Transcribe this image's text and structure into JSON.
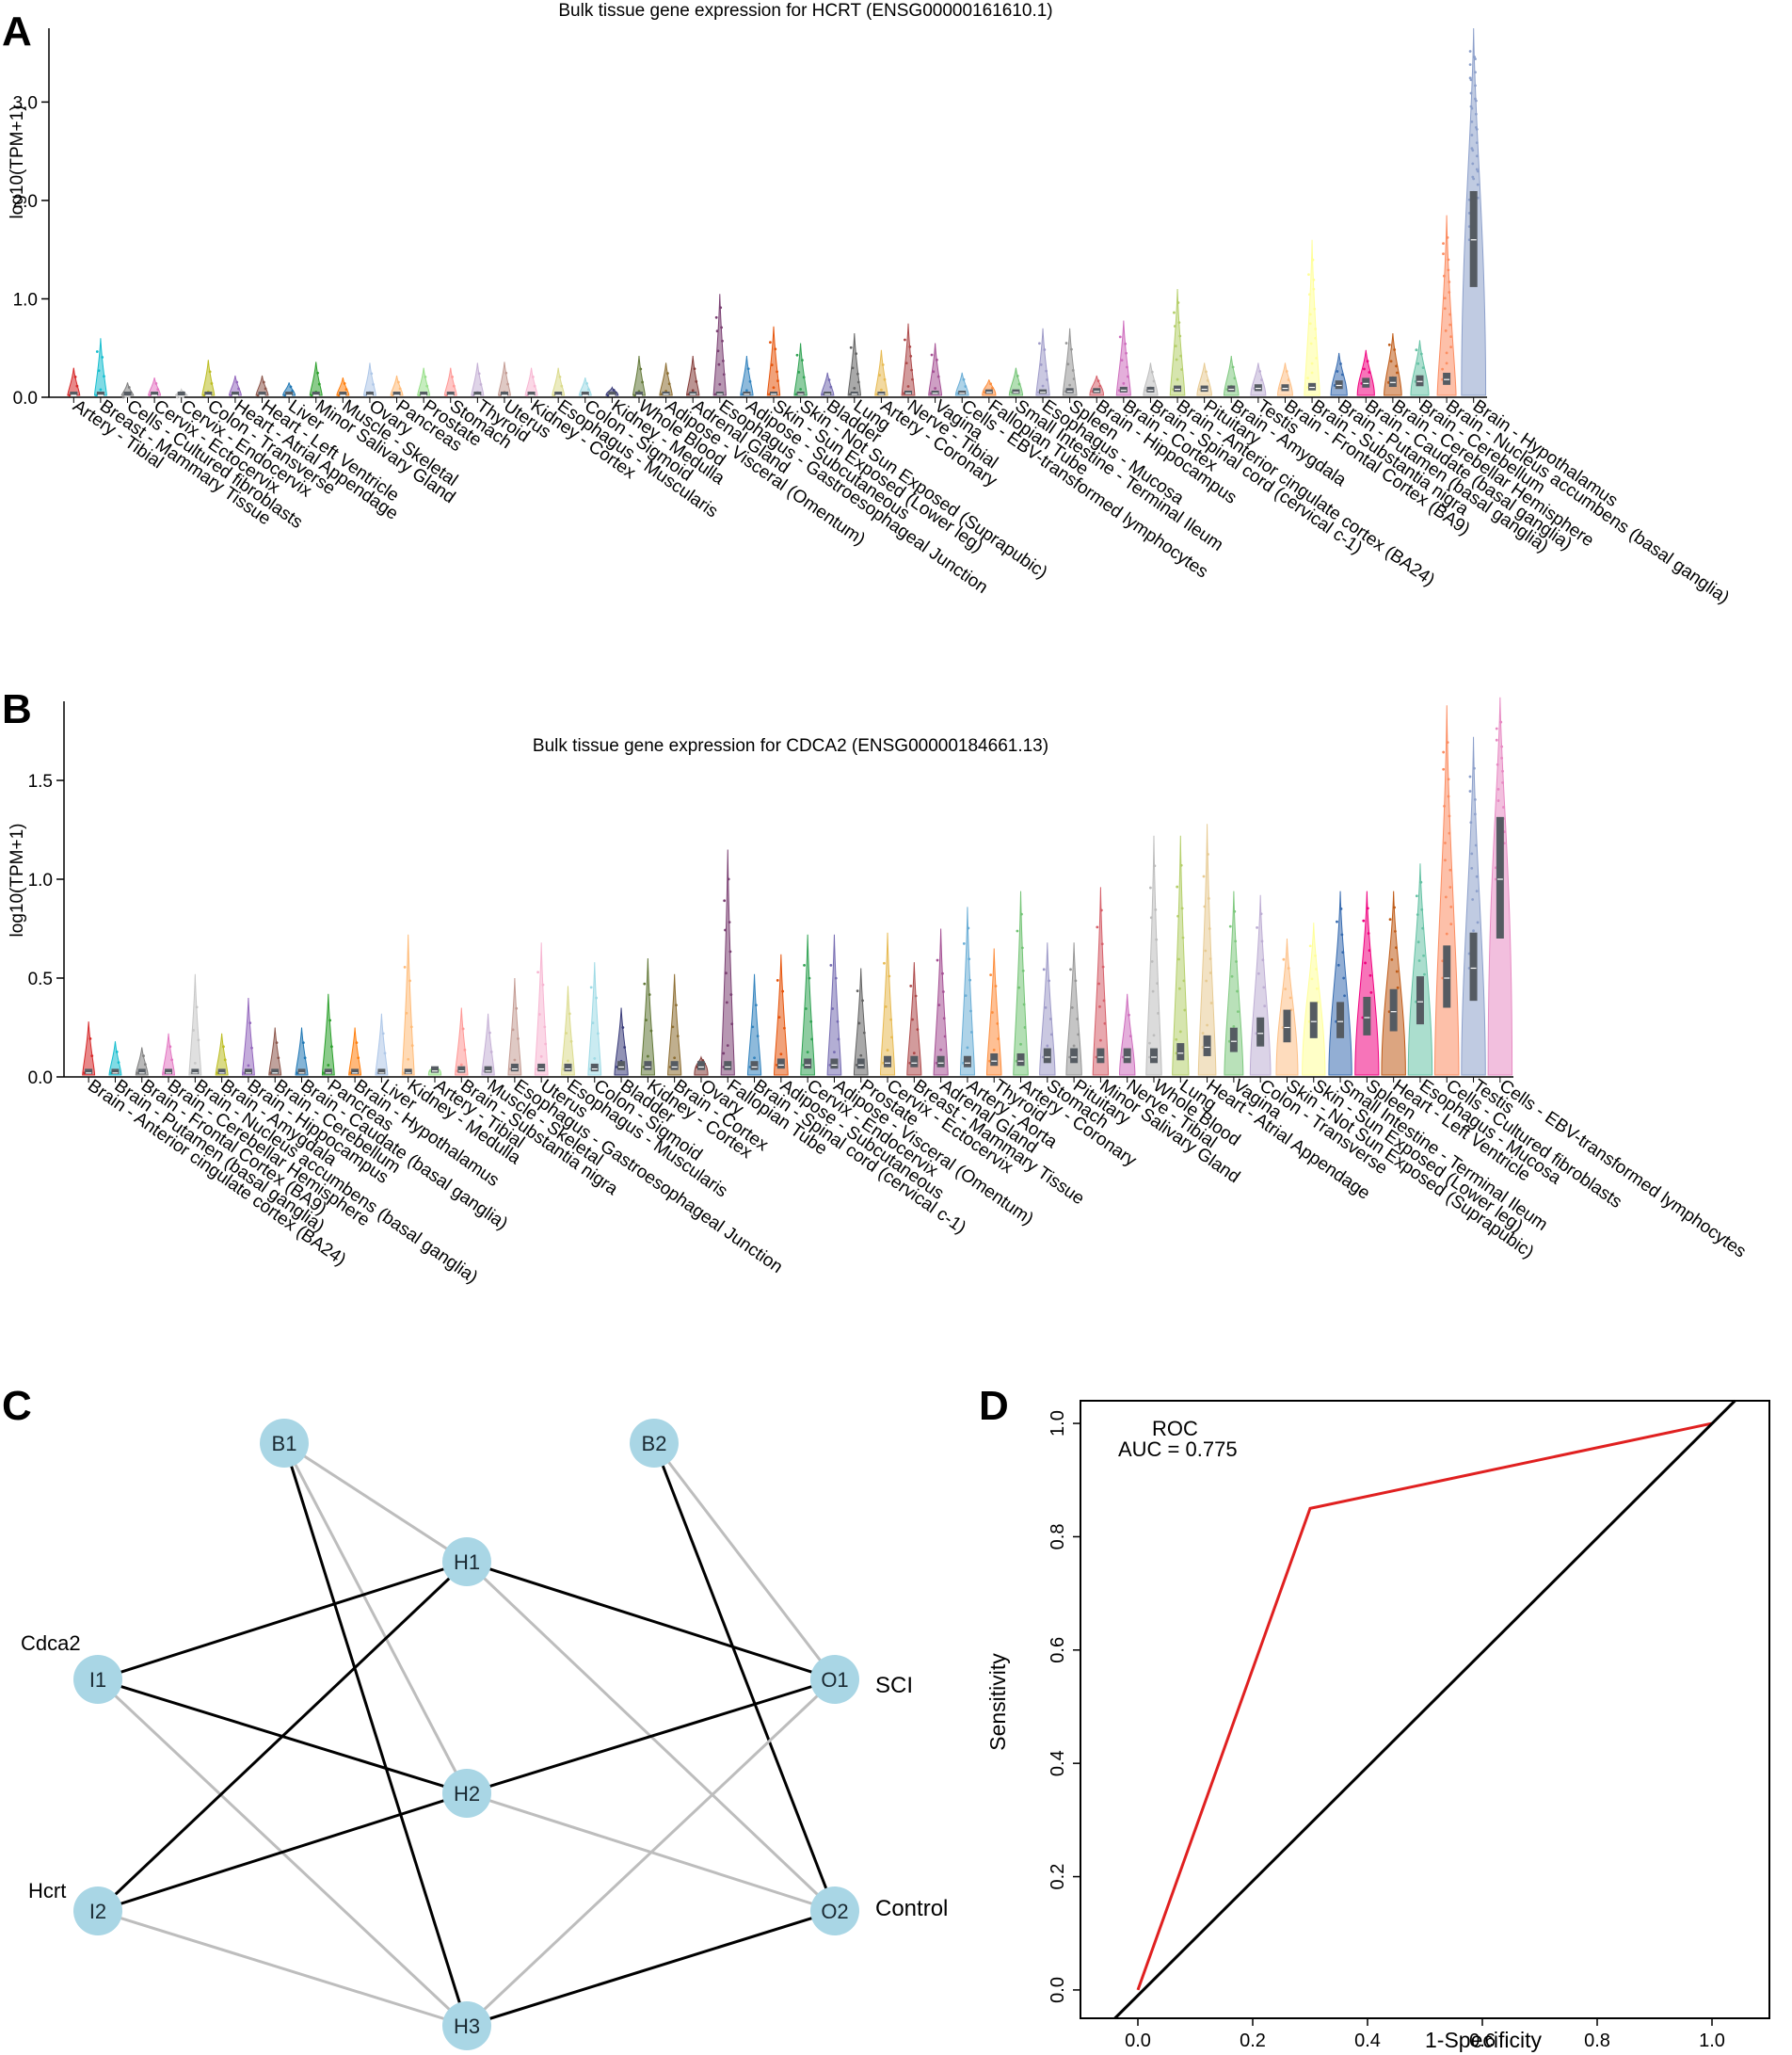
{
  "panels": {
    "a": {
      "letter": "A"
    },
    "b": {
      "letter": "B"
    },
    "c": {
      "letter": "C"
    },
    "d": {
      "letter": "D"
    }
  },
  "colors": {
    "axis": "#000000",
    "text": "#000000",
    "box": "#555b62",
    "node_fill": "#a9d6e5",
    "edge_dark": "#000000",
    "edge_light": "#bdbdbd",
    "roc_line": "#e02020",
    "diag_line": "#000000"
  },
  "chart_data": [
    {
      "id": "A",
      "type": "violin",
      "title": "Bulk tissue gene expression for HCRT (ENSG00000161610.1)",
      "ylabel": "log10(TPM+1)",
      "ylim": [
        0,
        3.75
      ],
      "yticks": [
        "0.0",
        "1.0",
        "2.0",
        "3.0"
      ],
      "yticks_num": [
        0,
        1,
        2,
        3
      ],
      "categories": [
        "Artery - Tibial",
        "Breast - Mammary Tissue",
        "Cells - Cultured fibroblasts",
        "Cervix - Ectocervix",
        "Cervix - Endocervix",
        "Colon - Transverse",
        "Heart - Atrial Appendage",
        "Heart - Left Ventricle",
        "Liver",
        "Minor Salivary Gland",
        "Muscle - Skeletal",
        "Ovary",
        "Pancreas",
        "Prostate",
        "Stomach",
        "Thyroid",
        "Uterus",
        "Kidney - Cortex",
        "Esophagus - Muscularis",
        "Colon - Sigmoid",
        "Kidney - Medulla",
        "Whole Blood",
        "Adipose - Visceral (Omentum)",
        "Adrenal Gland",
        "Esophagus - Gastroesophageal Junction",
        "Adipose - Subcutaneous",
        "Skin - Sun Exposed (Lower leg)",
        "Skin - Not Sun Exposed (Suprapubic)",
        "Bladder",
        "Lung",
        "Artery - Coronary",
        "Nerve - Tibial",
        "Vagina",
        "Cells - EBV-transformed lymphocytes",
        "Fallopian Tube",
        "Small Intestine - Terminal Ileum",
        "Esophagus - Mucosa",
        "Spleen",
        "Brain - Hippocampus",
        "Brain - Cortex",
        "Brain - Spinal cord (cervical c-1)",
        "Brain - Anterior cingulate cortex (BA24)",
        "Pituitary",
        "Brain - Amygdala",
        "Testis",
        "Brain - Frontal Cortex (BA9)",
        "Brain - Substantia nigra",
        "Brain - Putamen (basal ganglia)",
        "Brain - Caudate (basal ganglia)",
        "Brain - Cerebellar Hemisphere",
        "Brain - Cerebellum",
        "Brain - Nucleus accumbens (basal ganglia)",
        "Brain - Hypothalamus"
      ],
      "medians": [
        0.02,
        0.02,
        0.0,
        0.02,
        0.0,
        0.02,
        0.02,
        0.02,
        0.02,
        0.02,
        0.02,
        0.02,
        0.02,
        0.02,
        0.02,
        0.02,
        0.02,
        0.02,
        0.02,
        0.02,
        0.02,
        0.02,
        0.03,
        0.03,
        0.03,
        0.03,
        0.03,
        0.03,
        0.03,
        0.03,
        0.03,
        0.04,
        0.04,
        0.04,
        0.05,
        0.05,
        0.05,
        0.06,
        0.06,
        0.07,
        0.07,
        0.08,
        0.08,
        0.08,
        0.09,
        0.09,
        0.1,
        0.12,
        0.14,
        0.15,
        0.16,
        0.18,
        1.6
      ],
      "maxima": [
        0.3,
        0.6,
        0.15,
        0.2,
        0.08,
        0.38,
        0.22,
        0.22,
        0.15,
        0.36,
        0.2,
        0.35,
        0.22,
        0.3,
        0.3,
        0.35,
        0.36,
        0.3,
        0.3,
        0.2,
        0.1,
        0.42,
        0.35,
        0.42,
        1.05,
        0.42,
        0.72,
        0.55,
        0.25,
        0.65,
        0.48,
        0.75,
        0.55,
        0.25,
        0.18,
        0.3,
        0.7,
        0.7,
        0.22,
        0.78,
        0.35,
        1.1,
        0.35,
        0.42,
        0.35,
        0.35,
        1.6,
        0.45,
        0.48,
        0.65,
        0.58,
        1.85,
        3.75
      ]
    },
    {
      "id": "B",
      "type": "violin",
      "title": "Bulk tissue gene expression for CDCA2 (ENSG00000184661.13)",
      "ylabel": "log10(TPM+1)",
      "ylim": [
        0,
        1.9
      ],
      "yticks": [
        "0.0",
        "0.5",
        "1.0",
        "1.5"
      ],
      "yticks_num": [
        0,
        0.5,
        1,
        1.5
      ],
      "categories": [
        "Brain - Anterior cingulate cortex (BA24)",
        "Brain - Putamen (basal ganglia)",
        "Brain - Frontal Cortex (BA9)",
        "Brain - Cerebellar Hemisphere",
        "Brain - Nucleus accumbens (basal ganglia)",
        "Brain - Amygdala",
        "Brain - Hippocampus",
        "Brain - Cerebellum",
        "Brain - Caudate (basal ganglia)",
        "Pancreas",
        "Brain - Hypothalamus",
        "Liver",
        "Kidney - Medulla",
        "Artery - Tibial",
        "Brain - Substantia nigra",
        "Muscle - Skeletal",
        "Esophagus - Gastroesophageal Junction",
        "Uterus",
        "Esophagus - Muscularis",
        "Colon - Sigmoid",
        "Bladder",
        "Kidney - Cortex",
        "Brain - Cortex",
        "Ovary",
        "Fallopian Tube",
        "Brain - Spinal cord (cervical c-1)",
        "Adipose - Subcutaneous",
        "Cervix - Endocervix",
        "Adipose - Visceral (Omentum)",
        "Prostate",
        "Cervix - Ectocervix",
        "Breast - Mammary Tissue",
        "Adrenal Gland",
        "Artery - Aorta",
        "Thyroid",
        "Artery - Coronary",
        "Stomach",
        "Pituitary",
        "Minor Salivary Gland",
        "Nerve - Tibial",
        "Whole Blood",
        "Lung",
        "Heart - Atrial Appendage",
        "Vagina",
        "Colon - Transverse",
        "Skin - Not Sun Exposed (Suprapubic)",
        "Skin - Sun Exposed (Lower leg)",
        "Small Intestine - Terminal Ileum",
        "Spleen",
        "Heart - Left Ventricle",
        "Esophagus - Mucosa",
        "Cells - Cultured fibroblasts",
        "Testis",
        "Cells - EBV-transformed lymphocytes"
      ],
      "medians": [
        0.02,
        0.02,
        0.02,
        0.02,
        0.02,
        0.02,
        0.02,
        0.02,
        0.02,
        0.02,
        0.02,
        0.02,
        0.02,
        0.03,
        0.03,
        0.03,
        0.04,
        0.04,
        0.04,
        0.04,
        0.05,
        0.05,
        0.05,
        0.05,
        0.05,
        0.05,
        0.06,
        0.06,
        0.06,
        0.06,
        0.07,
        0.07,
        0.07,
        0.07,
        0.08,
        0.08,
        0.1,
        0.1,
        0.1,
        0.1,
        0.1,
        0.12,
        0.15,
        0.18,
        0.22,
        0.25,
        0.28,
        0.28,
        0.3,
        0.33,
        0.38,
        0.5,
        0.55,
        1.0
      ],
      "maxima": [
        0.28,
        0.18,
        0.15,
        0.22,
        0.52,
        0.22,
        0.4,
        0.25,
        0.25,
        0.42,
        0.25,
        0.32,
        0.72,
        0.05,
        0.35,
        0.32,
        0.5,
        0.68,
        0.46,
        0.58,
        0.35,
        0.6,
        0.52,
        0.1,
        1.15,
        0.52,
        0.62,
        0.72,
        0.72,
        0.55,
        0.73,
        0.58,
        0.75,
        0.86,
        0.65,
        0.94,
        0.68,
        0.68,
        0.96,
        0.42,
        1.22,
        1.22,
        1.28,
        0.94,
        0.92,
        0.7,
        0.78,
        0.94,
        0.94,
        0.94,
        1.08,
        1.88,
        1.72,
        1.92
      ]
    },
    {
      "id": "D",
      "type": "line",
      "title": "",
      "xlabel": "1-Specificity",
      "ylabel": "Sensitivity",
      "xlim": [
        -0.1,
        1.1
      ],
      "ylim": [
        -0.05,
        1.04
      ],
      "xticks": [
        "0.0",
        "0.2",
        "0.4",
        "0.6",
        "0.8",
        "1.0"
      ],
      "yticks": [
        "0.0",
        "0.2",
        "0.4",
        "0.6",
        "0.8",
        "1.0"
      ],
      "legend": {
        "label": "ROC",
        "auc": "AUC = 0.775"
      },
      "series": [
        {
          "name": "ROC",
          "x": [
            0.0,
            0.3,
            1.0
          ],
          "y": [
            0.0,
            0.85,
            1.0
          ]
        },
        {
          "name": "Reference diagonal",
          "x": [
            -0.04,
            1.04
          ],
          "y": [
            -0.05,
            1.04
          ]
        }
      ]
    }
  ],
  "network": {
    "nodes": [
      {
        "id": "B1",
        "label": "B1"
      },
      {
        "id": "B2",
        "label": "B2"
      },
      {
        "id": "H1",
        "label": "H1"
      },
      {
        "id": "H2",
        "label": "H2"
      },
      {
        "id": "H3",
        "label": "H3"
      },
      {
        "id": "I1",
        "label": "I1",
        "annotation": "Cdca2"
      },
      {
        "id": "I2",
        "label": "I2",
        "annotation": "Hcrt"
      },
      {
        "id": "O1",
        "label": "O1",
        "annotation": "SCI"
      },
      {
        "id": "O2",
        "label": "O2",
        "annotation": "Control"
      }
    ],
    "edges": [
      {
        "from": "B1",
        "to": "H1",
        "weight": "light"
      },
      {
        "from": "B1",
        "to": "H2",
        "weight": "light"
      },
      {
        "from": "B1",
        "to": "H3",
        "weight": "dark"
      },
      {
        "from": "B2",
        "to": "O1",
        "weight": "light"
      },
      {
        "from": "B2",
        "to": "O2",
        "weight": "dark"
      },
      {
        "from": "I1",
        "to": "H1",
        "weight": "dark"
      },
      {
        "from": "I1",
        "to": "H2",
        "weight": "dark"
      },
      {
        "from": "I1",
        "to": "H3",
        "weight": "light"
      },
      {
        "from": "I2",
        "to": "H1",
        "weight": "dark"
      },
      {
        "from": "I2",
        "to": "H2",
        "weight": "dark"
      },
      {
        "from": "I2",
        "to": "H3",
        "weight": "light"
      },
      {
        "from": "H1",
        "to": "O1",
        "weight": "dark"
      },
      {
        "from": "H1",
        "to": "O2",
        "weight": "light"
      },
      {
        "from": "H2",
        "to": "O1",
        "weight": "dark"
      },
      {
        "from": "H2",
        "to": "O2",
        "weight": "light"
      },
      {
        "from": "H3",
        "to": "O1",
        "weight": "light"
      },
      {
        "from": "H3",
        "to": "O2",
        "weight": "dark"
      }
    ]
  }
}
